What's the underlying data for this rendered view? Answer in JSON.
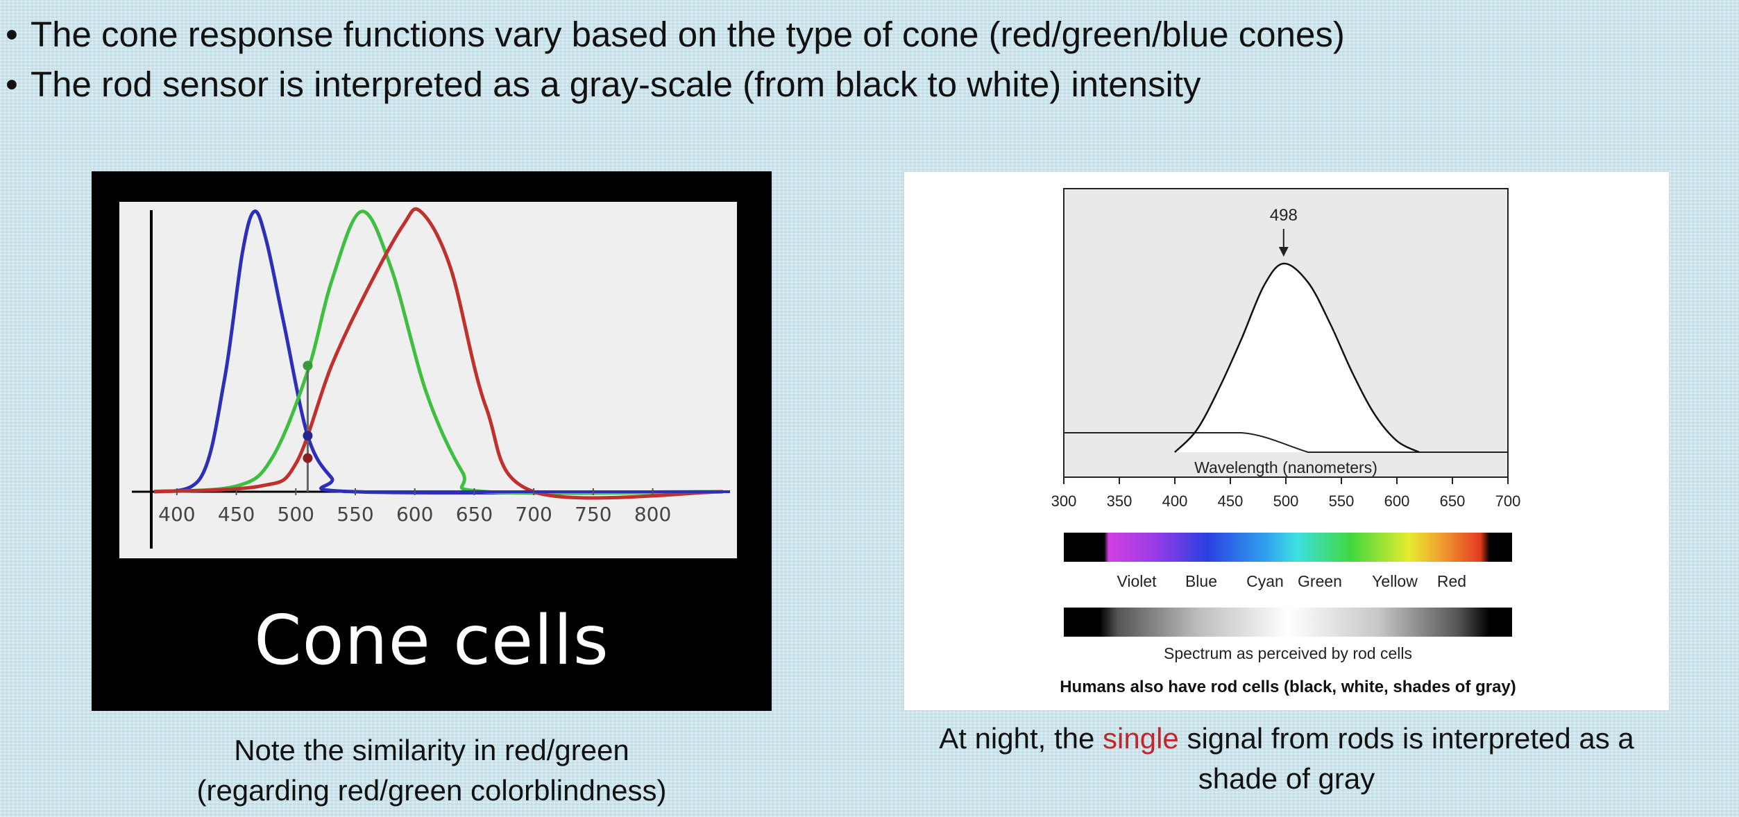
{
  "bullets": [
    "The cone response functions vary based on the type of cone (red/green/blue cones)",
    "The rod sensor is interpreted as a gray-scale (from black to white) intensity"
  ],
  "bullet_marker": "•",
  "left_figure": {
    "title": "Cone cells",
    "caption_line1": "Note the similarity in red/green",
    "caption_line2": "(regarding red/green colorblindness)"
  },
  "right_figure": {
    "peak_label": "498",
    "xlabel": "Wavelength (nanometers)",
    "color_labels": [
      "Violet",
      "Blue",
      "Cyan",
      "Green",
      "Yellow",
      "Red"
    ],
    "gray_label": "Spectrum as perceived by rod cells",
    "bottom_label": "Humans also have rod cells (black, white, shades of gray)",
    "caption_pre": "At night, the ",
    "caption_highlight": "single",
    "caption_post": " signal from rods is interpreted as a shade of gray"
  },
  "colors": {
    "blue_cone": "#2e2fb8",
    "green_cone": "#3fbf3f",
    "red_cone": "#c0302c",
    "highlight": "#c0262d"
  },
  "chart_data": [
    {
      "type": "line",
      "x_ticks": [
        400,
        450,
        500,
        550,
        600,
        650,
        700,
        750,
        800
      ],
      "xlim": [
        375,
        865
      ],
      "series": [
        {
          "color": "blue",
          "peak": 465,
          "values_x": [
            420,
            440,
            455,
            465,
            475,
            490,
            510,
            530,
            550
          ],
          "values_y": [
            0.05,
            0.4,
            0.85,
            1.0,
            0.9,
            0.6,
            0.2,
            0.05,
            0
          ]
        },
        {
          "color": "green",
          "peak": 555,
          "values_x": [
            450,
            480,
            510,
            530,
            555,
            580,
            610,
            640,
            660
          ],
          "values_y": [
            0.02,
            0.12,
            0.43,
            0.75,
            1.0,
            0.8,
            0.35,
            0.07,
            0
          ]
        },
        {
          "color": "red",
          "peak": 605,
          "values_x": [
            470,
            500,
            530,
            560,
            590,
            605,
            630,
            660,
            700
          ],
          "values_y": [
            0.02,
            0.1,
            0.45,
            0.72,
            0.95,
            1.0,
            0.8,
            0.3,
            0
          ]
        }
      ]
    },
    {
      "type": "area",
      "x_ticks": [
        300,
        350,
        400,
        450,
        500,
        550,
        600,
        650,
        700
      ],
      "xlim": [
        300,
        700
      ],
      "peak": 498,
      "values_x": [
        400,
        420,
        440,
        460,
        480,
        498,
        520,
        540,
        560,
        580,
        600,
        620
      ],
      "values_y": [
        0.0,
        0.12,
        0.34,
        0.6,
        0.88,
        1.0,
        0.9,
        0.68,
        0.42,
        0.2,
        0.06,
        0.0
      ]
    }
  ]
}
